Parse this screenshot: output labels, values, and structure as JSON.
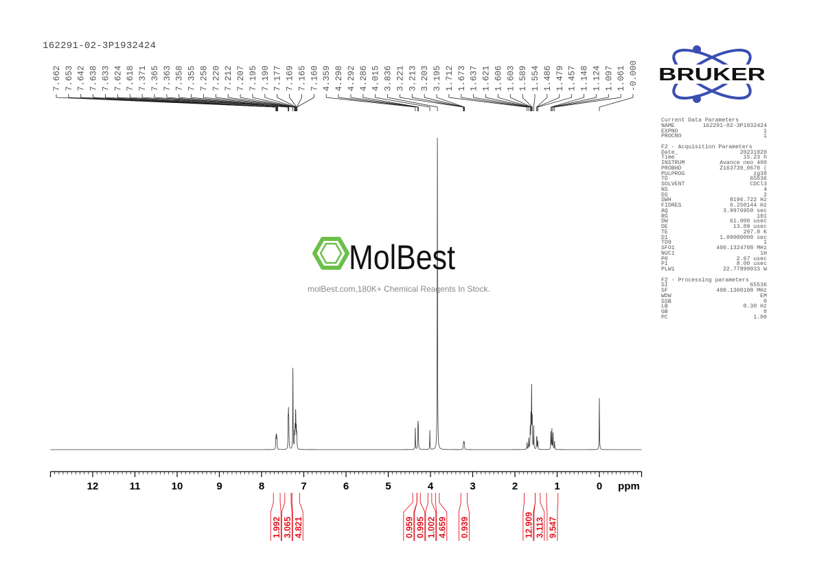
{
  "title": "162291-02-3P1932424",
  "watermark": {
    "name": "MolBest",
    "tagline": "molBest.com,180K+ Chemical Reagents In Stock.",
    "color": "#6cc04a"
  },
  "logo": {
    "text": "BRUKER",
    "color": "#3a4fb0"
  },
  "colors": {
    "spectrum": "#333333",
    "integral": "#e0141e",
    "axis": "#000000",
    "labels": "#555555"
  },
  "parameters": {
    "sections": [
      {
        "heading": "Current Data Parameters",
        "rows": [
          [
            "NAME",
            "162291-02-3P1932424"
          ],
          [
            "EXPNO",
            "1"
          ],
          [
            "PROCNO",
            "1"
          ]
        ]
      },
      {
        "heading": "F2 - Acquisition Parameters",
        "rows": [
          [
            "Date_",
            "20231020"
          ],
          [
            "Time",
            "15.23 h"
          ],
          [
            "INSTRUM",
            "Avance neo 400"
          ],
          [
            "PROBHD",
            "Z163739_0670 ("
          ],
          [
            "PULPROG",
            "zg30"
          ],
          [
            "TD",
            "65536"
          ],
          [
            "SOLVENT",
            "CDCl3"
          ],
          [
            "NS",
            "4"
          ],
          [
            "DS",
            "2"
          ],
          [
            "SWH",
            "8196.722 Hz"
          ],
          [
            "FIDRES",
            "0.250144 Hz"
          ],
          [
            "AQ",
            "3.9976959 sec"
          ],
          [
            "RG",
            "101"
          ],
          [
            "DW",
            "61.000 usec"
          ],
          [
            "DE",
            "13.89 usec"
          ],
          [
            "TE",
            "297.8 K"
          ],
          [
            "D1",
            "1.00000000 sec"
          ],
          [
            "TD0",
            "1"
          ],
          [
            "SFO1",
            "400.1324708 MHz"
          ],
          [
            "NUC1",
            "1H"
          ],
          [
            "P0",
            "2.67 usec"
          ],
          [
            "P1",
            "8.00 usec"
          ],
          [
            "PLW1",
            "22.77899933 W"
          ]
        ]
      },
      {
        "heading": "F2 - Processing parameters",
        "rows": [
          [
            "SI",
            "65536"
          ],
          [
            "SF",
            "400.1300108 MHz"
          ],
          [
            "WDW",
            "EM"
          ],
          [
            "SSB",
            "0"
          ],
          [
            "LB",
            "0.30 Hz"
          ],
          [
            "GB",
            "0"
          ],
          [
            "PC",
            "1.00"
          ]
        ]
      }
    ]
  },
  "chart_data": {
    "type": "line",
    "title": "",
    "xlabel": "ppm",
    "xlim": [
      13,
      -1
    ],
    "xticks": [
      12,
      11,
      10,
      9,
      8,
      7,
      6,
      5,
      4,
      3,
      2,
      1,
      0
    ],
    "minor_tick_step": 0.1,
    "grid": false,
    "peak_labels": [
      "7.662",
      "7.653",
      "7.642",
      "7.638",
      "7.633",
      "7.624",
      "7.618",
      "7.371",
      "7.365",
      "7.363",
      "7.358",
      "7.355",
      "7.258",
      "7.220",
      "7.212",
      "7.207",
      "7.195",
      "7.190",
      "7.177",
      "7.169",
      "7.165",
      "7.160",
      "4.359",
      "4.298",
      "4.292",
      "4.286",
      "4.015",
      "3.836",
      "3.221",
      "3.213",
      "3.203",
      "3.195",
      "1.712",
      "1.673",
      "1.637",
      "1.621",
      "1.606",
      "1.603",
      "1.589",
      "1.554",
      "1.486",
      "1.479",
      "1.457",
      "1.148",
      "1.124",
      "1.097",
      "1.061",
      "-0.000"
    ],
    "peaks": [
      {
        "ppm": 7.662,
        "intensity": 14
      },
      {
        "ppm": 7.653,
        "intensity": 18
      },
      {
        "ppm": 7.642,
        "intensity": 16
      },
      {
        "ppm": 7.633,
        "intensity": 12
      },
      {
        "ppm": 7.371,
        "intensity": 38
      },
      {
        "ppm": 7.363,
        "intensity": 44
      },
      {
        "ppm": 7.355,
        "intensity": 36
      },
      {
        "ppm": 7.258,
        "intensity": 118
      },
      {
        "ppm": 7.22,
        "intensity": 22
      },
      {
        "ppm": 7.207,
        "intensity": 28
      },
      {
        "ppm": 7.195,
        "intensity": 36
      },
      {
        "ppm": 7.19,
        "intensity": 32
      },
      {
        "ppm": 7.177,
        "intensity": 28
      },
      {
        "ppm": 7.165,
        "intensity": 22
      },
      {
        "ppm": 4.359,
        "intensity": 32
      },
      {
        "ppm": 4.298,
        "intensity": 24
      },
      {
        "ppm": 4.292,
        "intensity": 26
      },
      {
        "ppm": 4.286,
        "intensity": 20
      },
      {
        "ppm": 4.015,
        "intensity": 28
      },
      {
        "ppm": 3.836,
        "intensity": 460
      },
      {
        "ppm": 3.221,
        "intensity": 6
      },
      {
        "ppm": 3.213,
        "intensity": 9
      },
      {
        "ppm": 3.203,
        "intensity": 9
      },
      {
        "ppm": 3.195,
        "intensity": 6
      },
      {
        "ppm": 1.712,
        "intensity": 10
      },
      {
        "ppm": 1.673,
        "intensity": 16
      },
      {
        "ppm": 1.637,
        "intensity": 30
      },
      {
        "ppm": 1.621,
        "intensity": 45
      },
      {
        "ppm": 1.606,
        "intensity": 50
      },
      {
        "ppm": 1.603,
        "intensity": 48
      },
      {
        "ppm": 1.589,
        "intensity": 42
      },
      {
        "ppm": 1.554,
        "intensity": 34
      },
      {
        "ppm": 1.486,
        "intensity": 14
      },
      {
        "ppm": 1.479,
        "intensity": 14
      },
      {
        "ppm": 1.457,
        "intensity": 12
      },
      {
        "ppm": 1.148,
        "intensity": 26
      },
      {
        "ppm": 1.124,
        "intensity": 30
      },
      {
        "ppm": 1.097,
        "intensity": 24
      },
      {
        "ppm": 1.061,
        "intensity": 12
      },
      {
        "ppm": 0.0,
        "intensity": 76
      }
    ],
    "integrals": [
      {
        "value": "1.992",
        "from": 7.72,
        "to": 7.56
      },
      {
        "value": "3.065",
        "from": 7.45,
        "to": 7.3
      },
      {
        "value": "4.821",
        "from": 7.28,
        "to": 7.1
      },
      {
        "value": "0.959",
        "from": 4.42,
        "to": 4.32
      },
      {
        "value": "0.995",
        "from": 4.32,
        "to": 4.24
      },
      {
        "value": "1.002",
        "from": 4.06,
        "to": 3.97
      },
      {
        "value": "4.659",
        "from": 3.88,
        "to": 3.79
      },
      {
        "value": "0.939",
        "from": 3.28,
        "to": 3.13
      },
      {
        "value": "12.909",
        "from": 1.78,
        "to": 1.52
      },
      {
        "value": "3.113",
        "from": 1.52,
        "to": 1.4
      },
      {
        "value": "9.547",
        "from": 1.25,
        "to": 0.98
      }
    ]
  }
}
